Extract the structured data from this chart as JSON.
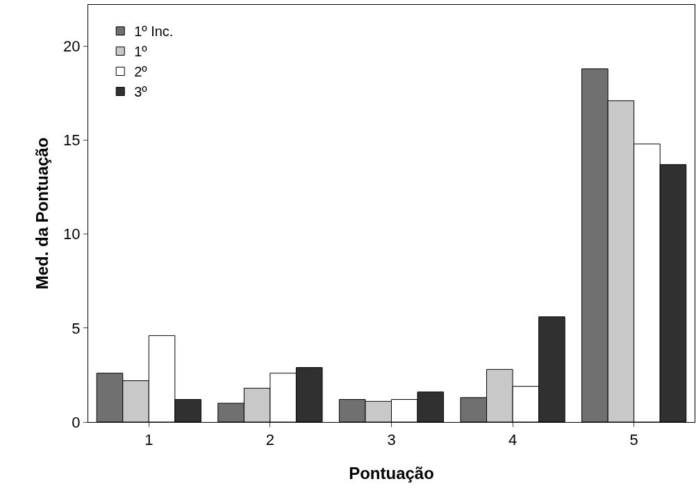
{
  "chart_data": {
    "type": "bar",
    "xlabel": "Pontuação",
    "ylabel": "Med. da Pontuação",
    "categories": [
      "1",
      "2",
      "3",
      "4",
      "5"
    ],
    "series": [
      {
        "name": "1º Inc.",
        "color": "#707070",
        "values": [
          2.6,
          1.0,
          1.2,
          1.3,
          18.8
        ]
      },
      {
        "name": "1º",
        "color": "#c8c8c8",
        "values": [
          2.2,
          1.8,
          1.1,
          2.8,
          17.1
        ]
      },
      {
        "name": "2º",
        "color": "#ffffff",
        "values": [
          4.6,
          2.6,
          1.2,
          1.9,
          14.8
        ]
      },
      {
        "name": "3º",
        "color": "#303030",
        "values": [
          1.2,
          2.9,
          1.6,
          5.6,
          13.7
        ]
      }
    ],
    "ylim": [
      0,
      22.2
    ],
    "yticks": [
      0,
      5,
      10,
      15,
      20
    ],
    "grid": false,
    "legend": "top left"
  }
}
